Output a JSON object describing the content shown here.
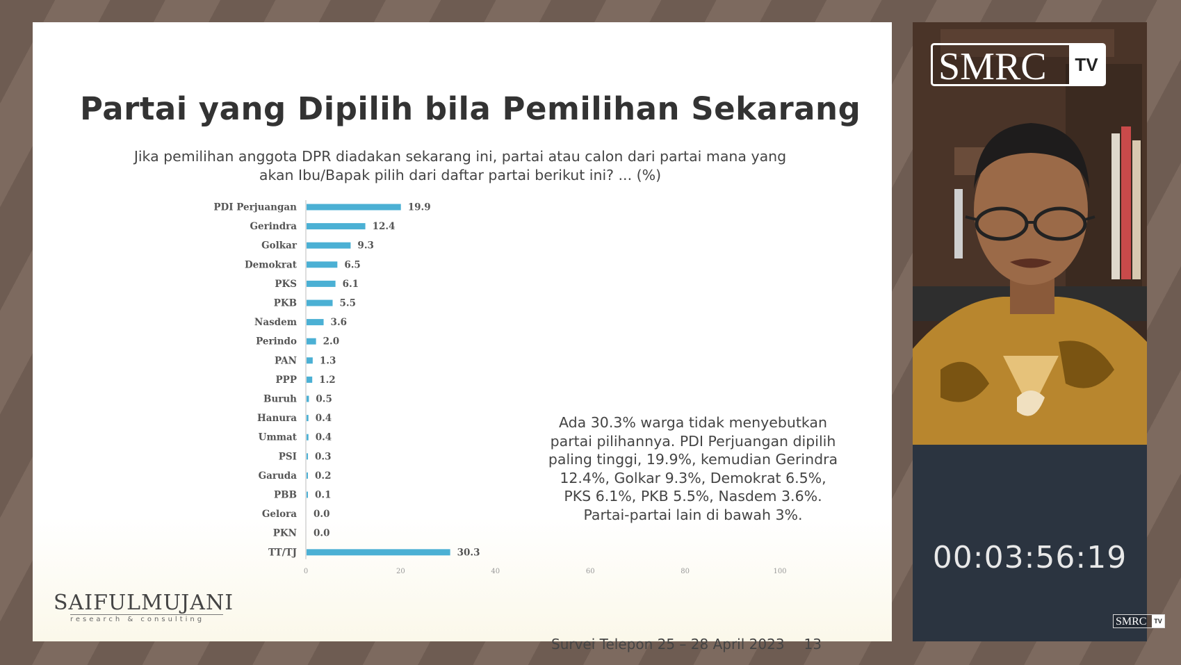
{
  "slide": {
    "title": "Partai yang Dipilih bila Pemilihan Sekarang",
    "question_line1": "Jika pemilihan anggota DPR diadakan sekarang ini, partai atau calon dari partai mana yang",
    "question_line2": "akan Ibu/Bapak pilih dari daftar partai berikut ini? ... (%)",
    "note_lines": [
      "Ada 30.3% warga tidak menyebutkan",
      "partai pilihannya. PDI Perjuangan dipilih",
      "paling tinggi, 19.9%, kemudian Gerindra",
      "12.4%, Golkar 9.3%, Demokrat 6.5%,",
      "PKS 6.1%, PKB 5.5%, Nasdem 3.6%.",
      "Partai-partai lain di bawah 3%."
    ],
    "brand_name": "SAIFULMUJANI",
    "brand_tagline": "research & consulting",
    "footer_text": "Survei Telepon 25 – 28 April 2023",
    "page_number": "13"
  },
  "chart_data": {
    "type": "bar",
    "orientation": "horizontal",
    "categories": [
      "PDI Perjuangan",
      "Gerindra",
      "Golkar",
      "Demokrat",
      "PKS",
      "PKB",
      "Nasdem",
      "Perindo",
      "PAN",
      "PPP",
      "Buruh",
      "Hanura",
      "Ummat",
      "PSI",
      "Garuda",
      "PBB",
      "Gelora",
      "PKN",
      "TT/TJ"
    ],
    "values": [
      19.9,
      12.4,
      9.3,
      6.5,
      6.1,
      5.5,
      3.6,
      2.0,
      1.3,
      1.2,
      0.5,
      0.4,
      0.4,
      0.3,
      0.2,
      0.1,
      0.0,
      0.0,
      30.3
    ],
    "value_labels": [
      "19.9",
      "12.4",
      "9.3",
      "6.5",
      "6.1",
      "5.5",
      "3.6",
      "2.0",
      "1.3",
      "1.2",
      "0.5",
      "0.4",
      "0.4",
      "0.3",
      "0.2",
      "0.1",
      "0.0",
      "0.0",
      "30.3"
    ],
    "x_ticks": [
      "0",
      "20",
      "40",
      "60",
      "80",
      "100"
    ],
    "xlim": [
      0,
      100
    ],
    "grid": false,
    "bar_color": "#4bb0d4"
  },
  "video": {
    "logo_text": "SMRC",
    "logo_badge": "TV",
    "timer": "00:03:56:19"
  }
}
